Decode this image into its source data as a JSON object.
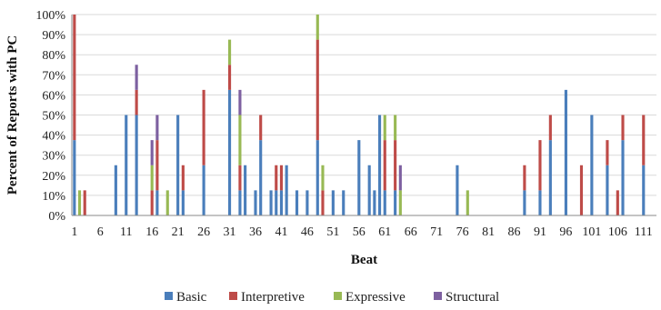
{
  "chart_data": {
    "type": "bar",
    "stacked": true,
    "xlabel": "Beat",
    "ylabel": "Percent of Reports with PC",
    "ylim": [
      0,
      1
    ],
    "yticks": [
      0,
      0.1,
      0.2,
      0.3,
      0.4,
      0.5,
      0.6,
      0.7,
      0.8,
      0.9,
      1.0
    ],
    "ytick_labels": [
      "0%",
      "10%",
      "20%",
      "30%",
      "40%",
      "50%",
      "60%",
      "70%",
      "80%",
      "90%",
      "100%"
    ],
    "x_range": [
      1,
      113
    ],
    "x_tick_labels": [
      "1",
      "6",
      "11",
      "16",
      "21",
      "26",
      "31",
      "36",
      "41",
      "46",
      "51",
      "56",
      "61",
      "66",
      "71",
      "76",
      "81",
      "86",
      "91",
      "96",
      "101",
      "106",
      "111"
    ],
    "grid": true,
    "legend_position": "bottom",
    "series": [
      {
        "name": "Basic",
        "color": "#4a7ebb",
        "points": [
          [
            1,
            0.375
          ],
          [
            9,
            0.25
          ],
          [
            11,
            0.5
          ],
          [
            13,
            0.5
          ],
          [
            17,
            0.125
          ],
          [
            21,
            0.5
          ],
          [
            22,
            0.125
          ],
          [
            26,
            0.25
          ],
          [
            31,
            0.625
          ],
          [
            33,
            0.125
          ],
          [
            34,
            0.25
          ],
          [
            36,
            0.125
          ],
          [
            37,
            0.375
          ],
          [
            39,
            0.125
          ],
          [
            40,
            0.125
          ],
          [
            41,
            0.125
          ],
          [
            42,
            0.25
          ],
          [
            44,
            0.125
          ],
          [
            46,
            0.125
          ],
          [
            48,
            0.375
          ],
          [
            51,
            0.125
          ],
          [
            53,
            0.125
          ],
          [
            56,
            0.375
          ],
          [
            58,
            0.25
          ],
          [
            59,
            0.125
          ],
          [
            60,
            0.5
          ],
          [
            61,
            0.125
          ],
          [
            63,
            0.125
          ],
          [
            75,
            0.25
          ],
          [
            88,
            0.125
          ],
          [
            91,
            0.125
          ],
          [
            93,
            0.375
          ],
          [
            96,
            0.625
          ],
          [
            101,
            0.5
          ],
          [
            104,
            0.25
          ],
          [
            107,
            0.375
          ],
          [
            111,
            0.25
          ]
        ]
      },
      {
        "name": "Interpretive",
        "color": "#be4b48",
        "points": [
          [
            1,
            0.625
          ],
          [
            3,
            0.125
          ],
          [
            13,
            0.125
          ],
          [
            16,
            0.125
          ],
          [
            17,
            0.25
          ],
          [
            22,
            0.125
          ],
          [
            26,
            0.375
          ],
          [
            31,
            0.125
          ],
          [
            33,
            0.125
          ],
          [
            37,
            0.125
          ],
          [
            40,
            0.125
          ],
          [
            41,
            0.125
          ],
          [
            48,
            0.5
          ],
          [
            49,
            0.125
          ],
          [
            61,
            0.25
          ],
          [
            63,
            0.25
          ],
          [
            88,
            0.125
          ],
          [
            91,
            0.25
          ],
          [
            93,
            0.125
          ],
          [
            99,
            0.25
          ],
          [
            104,
            0.125
          ],
          [
            106,
            0.125
          ],
          [
            107,
            0.125
          ],
          [
            111,
            0.25
          ]
        ]
      },
      {
        "name": "Expressive",
        "color": "#98b954",
        "points": [
          [
            2,
            0.125
          ],
          [
            16,
            0.125
          ],
          [
            19,
            0.125
          ],
          [
            31,
            0.125
          ],
          [
            33,
            0.25
          ],
          [
            48,
            0.125
          ],
          [
            49,
            0.125
          ],
          [
            61,
            0.125
          ],
          [
            63,
            0.125
          ],
          [
            64,
            0.125
          ],
          [
            77,
            0.125
          ]
        ]
      },
      {
        "name": "Structural",
        "color": "#7d60a0",
        "points": [
          [
            13,
            0.125
          ],
          [
            16,
            0.125
          ],
          [
            17,
            0.125
          ],
          [
            33,
            0.125
          ],
          [
            64,
            0.125
          ]
        ]
      }
    ]
  }
}
